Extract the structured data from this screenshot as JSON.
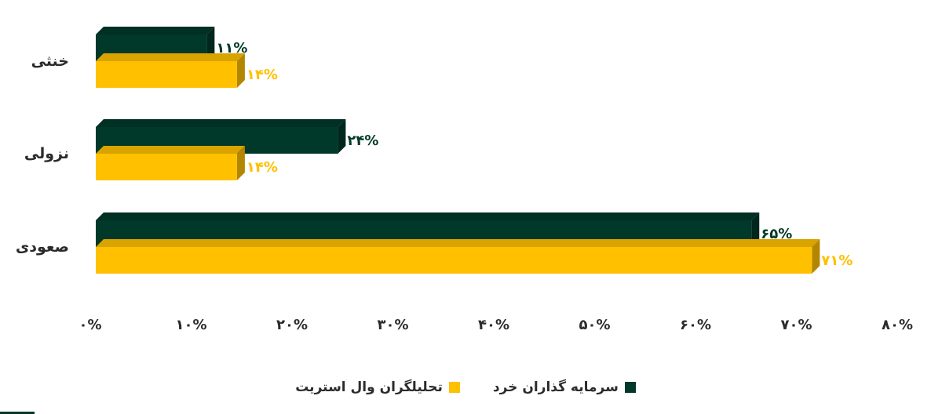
{
  "chart_data": {
    "type": "bar",
    "orientation": "horizontal",
    "categories": [
      "خنثی",
      "نزولی",
      "صعودی"
    ],
    "series": [
      {
        "name": "سرمایه گذاران خرد",
        "values": [
          11,
          24,
          65
        ],
        "labels": [
          "۱۱%",
          "۲۴%",
          "۶۵%"
        ],
        "color": "#003829"
      },
      {
        "name": "تحلیلگران وال استریت",
        "values": [
          14,
          14,
          71
        ],
        "labels": [
          "۱۴%",
          "۱۴%",
          "۷۱%"
        ],
        "color": "#FFC000"
      }
    ],
    "xlim": [
      0,
      80
    ],
    "xticks": [
      0,
      10,
      20,
      30,
      40,
      50,
      60,
      70,
      80
    ],
    "xtick_labels": [
      "۰%",
      "۱۰%",
      "۲۰%",
      "۳۰%",
      "۴۰%",
      "۵۰%",
      "۶۰%",
      "۷۰%",
      "۸۰%"
    ],
    "grid": false,
    "legend_position": "bottom"
  },
  "legend": {
    "items": [
      {
        "label": "سرمایه گذاران خرد",
        "color": "#003829"
      },
      {
        "label": "تحلیلگران وال استریت",
        "color": "#FFC000"
      }
    ]
  }
}
